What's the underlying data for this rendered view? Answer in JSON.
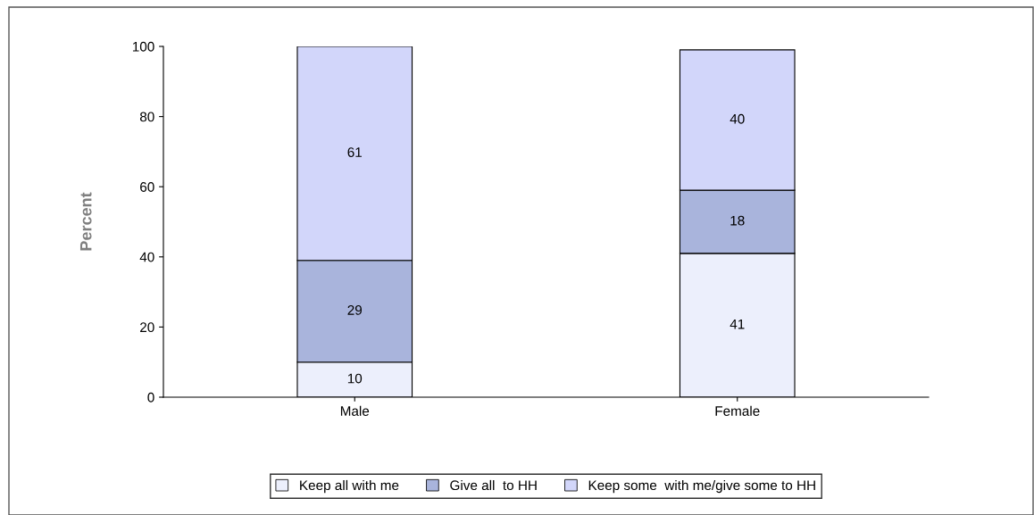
{
  "chart_data": {
    "type": "bar",
    "stacked": true,
    "ylabel": "Percent",
    "categories": [
      "Male",
      "Female"
    ],
    "series": [
      {
        "name": "Keep all with me",
        "color": "#eceffc",
        "values": [
          10,
          41
        ]
      },
      {
        "name": "Give all  to HH",
        "color": "#a9b4dc",
        "values": [
          29,
          18
        ]
      },
      {
        "name": "Keep some  with me/give some to HH",
        "color": "#d2d6fa",
        "values": [
          61,
          40
        ]
      }
    ],
    "ylim": [
      0,
      100
    ],
    "yticks": [
      0,
      20,
      40,
      60,
      80,
      100
    ],
    "data_labels": true,
    "legend": "bottom",
    "grid": false
  }
}
